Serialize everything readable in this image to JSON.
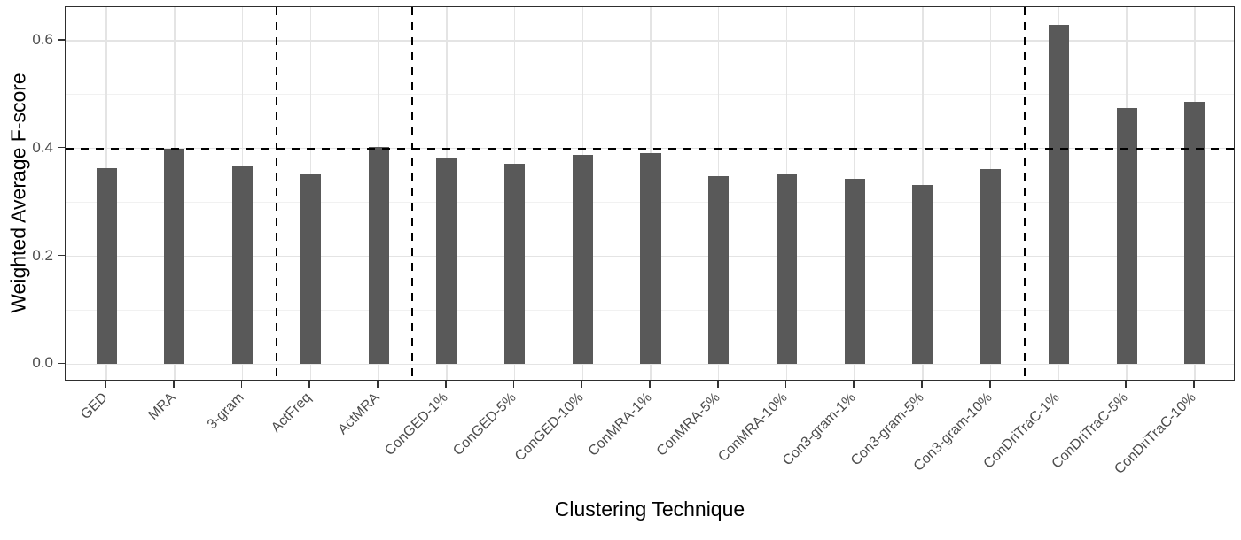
{
  "chart_data": {
    "type": "bar",
    "title": "",
    "xlabel": "Clustering Technique",
    "ylabel": "Weighted Average F-score",
    "categories": [
      "GED",
      "MRA",
      "3-gram",
      "ActFreq",
      "ActMRA",
      "ConGED-1%",
      "ConGED-5%",
      "ConGED-10%",
      "ConMRA-1%",
      "ConMRA-5%",
      "ConMRA-10%",
      "Con3-gram-1%",
      "Con3-gram-5%",
      "Con3-gram-10%",
      "ConDriTraC-1%",
      "ConDriTraC-5%",
      "ConDriTraC-10%"
    ],
    "values": [
      0.363,
      0.4,
      0.366,
      0.353,
      0.403,
      0.381,
      0.371,
      0.388,
      0.392,
      0.348,
      0.353,
      0.343,
      0.332,
      0.362,
      0.63,
      0.475,
      0.486
    ],
    "ytick_labels": [
      "0.0",
      "0.2",
      "0.4",
      "0.6"
    ],
    "yticks_major": [
      0.0,
      0.2,
      0.4,
      0.6
    ],
    "yticks_minor": [
      0.1,
      0.3,
      0.5
    ],
    "axis_range": [
      -0.032,
      0.662
    ],
    "reference_line_y": 0.4,
    "divider_after_categories": [
      "3-gram",
      "ActMRA",
      "Con3-gram-10%"
    ],
    "grid": true,
    "legend": "none",
    "colors": {
      "bar": "#595959",
      "grid_major": "#e4e4e4",
      "grid_minor": "#f1f1f1",
      "panel_border": "#2e2e2e",
      "axis_text": "#4d4d4d",
      "axis_title": "#000000",
      "dashed_line": "#000000",
      "background": "#ffffff"
    }
  }
}
